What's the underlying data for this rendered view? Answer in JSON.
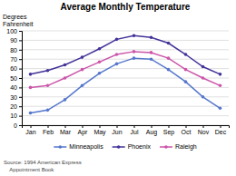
{
  "chart_data": {
    "type": "line",
    "title": "Average Monthly Temperature",
    "ylabel": [
      "Degrees",
      "Fahrenheit"
    ],
    "categories": [
      "Jan",
      "Feb",
      "Mar",
      "Apr",
      "May",
      "Jun",
      "Jul",
      "Aug",
      "Sep",
      "Oct",
      "Nov",
      "Dec"
    ],
    "series": [
      {
        "name": "Minneapolis",
        "color": "#5577cc",
        "marker": "circle",
        "values": [
          13,
          16,
          27,
          42,
          55,
          65,
          71,
          70,
          59,
          46,
          30,
          18
        ]
      },
      {
        "name": "Phoenix",
        "color": "#443399",
        "marker": "circle",
        "values": [
          54,
          58,
          64,
          72,
          81,
          91,
          95,
          93,
          87,
          75,
          62,
          54
        ]
      },
      {
        "name": "Raleigh",
        "color": "#cc55aa",
        "marker": "circle",
        "values": [
          40,
          42,
          50,
          59,
          67,
          75,
          78,
          77,
          71,
          59,
          50,
          42
        ]
      }
    ],
    "ylim": [
      0,
      100
    ],
    "yticks": [
      0,
      10,
      20,
      30,
      40,
      50,
      60,
      70,
      80,
      90,
      100
    ],
    "grid": true,
    "legend": "bottom",
    "source": [
      "Source: 1994 American Express",
      "    Appointment Book"
    ]
  }
}
